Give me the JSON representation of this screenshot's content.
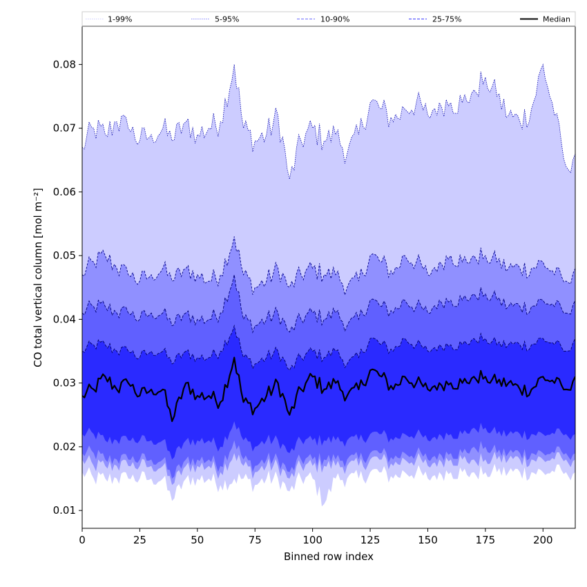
{
  "chart_data": {
    "type": "area",
    "xlabel": "Binned row index",
    "ylabel": "CO total vertical column [mol m⁻²]",
    "xlim": [
      0,
      214
    ],
    "ylim": [
      0.0072,
      0.086
    ],
    "xticks": [
      0,
      25,
      50,
      75,
      100,
      125,
      150,
      175,
      200
    ],
    "yticks": [
      0.01,
      0.02,
      0.03,
      0.04,
      0.05,
      0.06,
      0.07,
      0.08
    ],
    "ytick_labels": [
      "0.01",
      "0.02",
      "0.03",
      "0.04",
      "0.05",
      "0.06",
      "0.07",
      "0.08"
    ],
    "legend": {
      "placement": "top, above plot",
      "entries": [
        {
          "label": "1-99%",
          "style": "dotted",
          "color": "#ccccff"
        },
        {
          "label": "5-95%",
          "style": "dotted",
          "color": "#8080ff"
        },
        {
          "label": "10-90%",
          "style": "dashed",
          "color": "#6666ff"
        },
        {
          "label": "25-75%",
          "style": "dashed",
          "color": "#3333ff"
        },
        {
          "label": "Median",
          "style": "solid",
          "color": "#000000"
        }
      ]
    },
    "band_colors": [
      "#ccccff",
      "#9090ff",
      "#6060ff",
      "#2a2aff"
    ],
    "median_color": "#000000",
    "x_step": 1,
    "n_points": 215,
    "anchors": {
      "x": [
        0,
        5,
        10,
        15,
        20,
        25,
        30,
        35,
        39,
        45,
        50,
        55,
        60,
        66,
        70,
        75,
        80,
        85,
        90,
        95,
        100,
        105,
        110,
        115,
        120,
        125,
        130,
        135,
        140,
        145,
        150,
        155,
        160,
        165,
        170,
        175,
        180,
        185,
        190,
        195,
        200,
        205,
        210,
        214
      ],
      "p99": [
        0.067,
        0.07,
        0.069,
        0.071,
        0.07,
        0.068,
        0.069,
        0.07,
        0.068,
        0.071,
        0.069,
        0.07,
        0.071,
        0.08,
        0.07,
        0.068,
        0.069,
        0.072,
        0.062,
        0.068,
        0.07,
        0.068,
        0.069,
        0.066,
        0.069,
        0.074,
        0.073,
        0.071,
        0.073,
        0.074,
        0.072,
        0.074,
        0.074,
        0.074,
        0.076,
        0.078,
        0.075,
        0.072,
        0.071,
        0.073,
        0.08,
        0.072,
        0.064,
        0.066
      ],
      "p95": [
        0.047,
        0.049,
        0.05,
        0.048,
        0.047,
        0.046,
        0.047,
        0.048,
        0.046,
        0.048,
        0.047,
        0.046,
        0.047,
        0.053,
        0.047,
        0.045,
        0.046,
        0.048,
        0.045,
        0.047,
        0.048,
        0.047,
        0.047,
        0.045,
        0.046,
        0.05,
        0.049,
        0.047,
        0.05,
        0.049,
        0.047,
        0.049,
        0.05,
        0.049,
        0.05,
        0.05,
        0.049,
        0.048,
        0.048,
        0.048,
        0.049,
        0.047,
        0.046,
        0.048
      ],
      "p90": [
        0.041,
        0.042,
        0.042,
        0.041,
        0.041,
        0.04,
        0.041,
        0.041,
        0.039,
        0.041,
        0.04,
        0.04,
        0.041,
        0.047,
        0.04,
        0.039,
        0.04,
        0.041,
        0.038,
        0.04,
        0.041,
        0.04,
        0.041,
        0.039,
        0.04,
        0.043,
        0.042,
        0.041,
        0.043,
        0.042,
        0.041,
        0.043,
        0.043,
        0.043,
        0.044,
        0.044,
        0.043,
        0.042,
        0.042,
        0.042,
        0.043,
        0.042,
        0.041,
        0.043
      ],
      "p75": [
        0.035,
        0.036,
        0.036,
        0.035,
        0.035,
        0.034,
        0.035,
        0.035,
        0.033,
        0.035,
        0.034,
        0.034,
        0.035,
        0.039,
        0.034,
        0.033,
        0.034,
        0.035,
        0.032,
        0.034,
        0.035,
        0.034,
        0.035,
        0.033,
        0.034,
        0.037,
        0.036,
        0.035,
        0.037,
        0.036,
        0.035,
        0.036,
        0.036,
        0.036,
        0.037,
        0.037,
        0.036,
        0.036,
        0.036,
        0.036,
        0.037,
        0.036,
        0.035,
        0.037
      ],
      "p50": [
        0.028,
        0.029,
        0.031,
        0.029,
        0.03,
        0.028,
        0.029,
        0.029,
        0.024,
        0.03,
        0.028,
        0.028,
        0.027,
        0.034,
        0.027,
        0.026,
        0.028,
        0.03,
        0.025,
        0.029,
        0.031,
        0.029,
        0.03,
        0.028,
        0.029,
        0.032,
        0.031,
        0.029,
        0.031,
        0.03,
        0.029,
        0.03,
        0.03,
        0.03,
        0.031,
        0.031,
        0.03,
        0.03,
        0.029,
        0.029,
        0.031,
        0.03,
        0.029,
        0.031
      ],
      "p25": [
        0.022,
        0.022,
        0.021,
        0.021,
        0.021,
        0.021,
        0.021,
        0.021,
        0.018,
        0.021,
        0.021,
        0.021,
        0.02,
        0.024,
        0.021,
        0.02,
        0.021,
        0.021,
        0.019,
        0.021,
        0.021,
        0.021,
        0.021,
        0.021,
        0.021,
        0.022,
        0.022,
        0.021,
        0.022,
        0.022,
        0.021,
        0.022,
        0.022,
        0.022,
        0.023,
        0.023,
        0.022,
        0.022,
        0.022,
        0.022,
        0.022,
        0.022,
        0.022,
        0.022
      ],
      "p10": [
        0.019,
        0.019,
        0.018,
        0.018,
        0.018,
        0.018,
        0.018,
        0.018,
        0.015,
        0.018,
        0.018,
        0.018,
        0.017,
        0.021,
        0.018,
        0.017,
        0.018,
        0.018,
        0.016,
        0.018,
        0.018,
        0.018,
        0.018,
        0.018,
        0.018,
        0.019,
        0.019,
        0.018,
        0.019,
        0.019,
        0.018,
        0.019,
        0.019,
        0.019,
        0.02,
        0.02,
        0.019,
        0.019,
        0.019,
        0.019,
        0.019,
        0.019,
        0.019,
        0.019
      ],
      "p5": [
        0.018,
        0.017,
        0.017,
        0.017,
        0.017,
        0.017,
        0.017,
        0.017,
        0.014,
        0.017,
        0.017,
        0.017,
        0.016,
        0.019,
        0.017,
        0.016,
        0.017,
        0.017,
        0.015,
        0.017,
        0.017,
        0.017,
        0.017,
        0.017,
        0.017,
        0.018,
        0.018,
        0.017,
        0.018,
        0.018,
        0.017,
        0.018,
        0.018,
        0.018,
        0.018,
        0.018,
        0.018,
        0.018,
        0.018,
        0.018,
        0.018,
        0.018,
        0.018,
        0.018
      ],
      "p1": [
        0.016,
        0.015,
        0.015,
        0.015,
        0.015,
        0.015,
        0.015,
        0.015,
        0.0115,
        0.015,
        0.015,
        0.015,
        0.014,
        0.015,
        0.015,
        0.014,
        0.015,
        0.015,
        0.013,
        0.015,
        0.015,
        0.011,
        0.015,
        0.015,
        0.015,
        0.016,
        0.016,
        0.015,
        0.016,
        0.016,
        0.015,
        0.016,
        0.016,
        0.016,
        0.016,
        0.016,
        0.016,
        0.016,
        0.016,
        0.016,
        0.016,
        0.016,
        0.016,
        0.016
      ]
    }
  }
}
